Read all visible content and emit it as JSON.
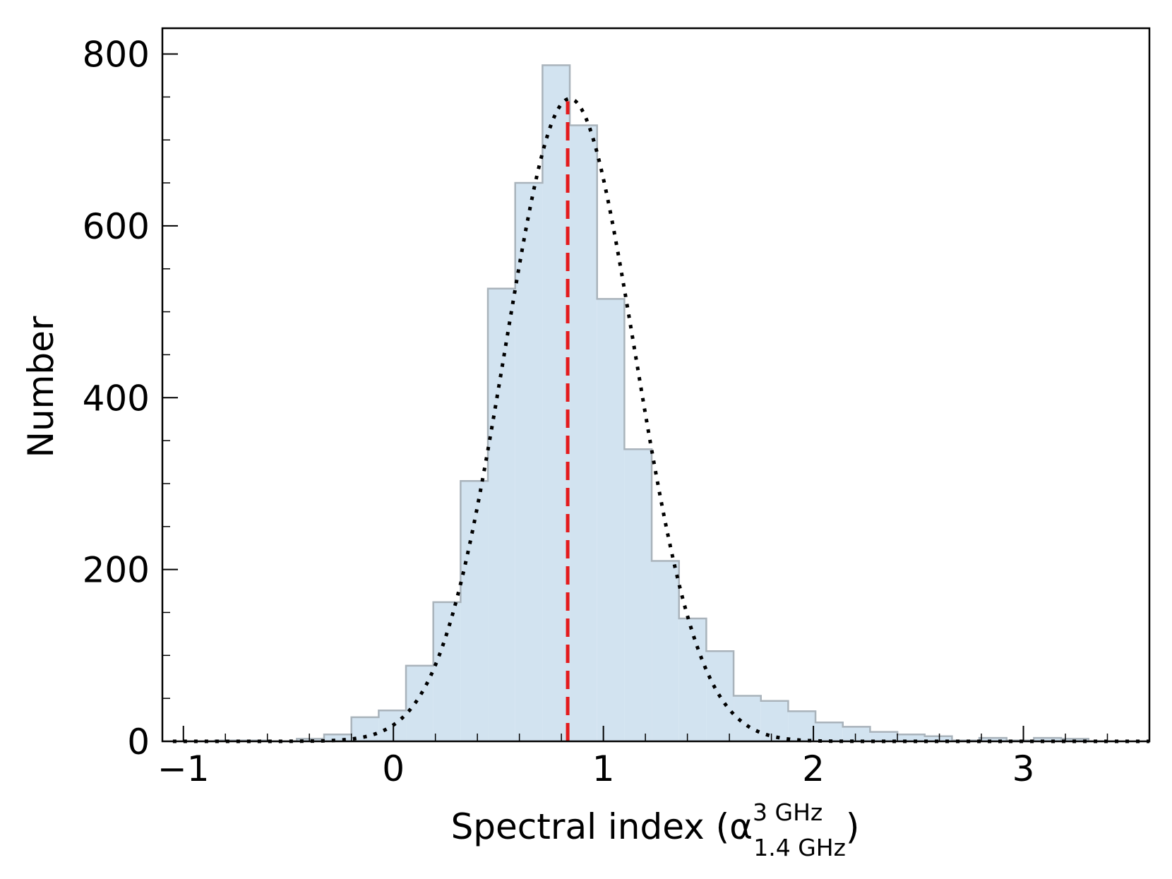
{
  "chart_data": {
    "type": "bar",
    "subtype": "histogram",
    "xlabel": "Spectral index (α",
    "xlabel_sup": "3 GHz",
    "xlabel_sub": "1.4 GHz",
    "xlabel_close": ")",
    "ylabel": "Number",
    "xlim": [
      -1.1,
      3.6
    ],
    "ylim": [
      0,
      830
    ],
    "xticks": [
      -1,
      0,
      1,
      2,
      3
    ],
    "xtick_labels": [
      "−1",
      "0",
      "1",
      "2",
      "3"
    ],
    "yticks": [
      0,
      200,
      400,
      600,
      800
    ],
    "ytick_labels": [
      "0",
      "200",
      "400",
      "600",
      "800"
    ],
    "bin_width": 0.13,
    "bin_left_edges": [
      -0.98,
      -0.85,
      -0.72,
      -0.59,
      -0.46,
      -0.33,
      -0.2,
      -0.07,
      0.06,
      0.19,
      0.32,
      0.45,
      0.58,
      0.71,
      0.84,
      0.97,
      1.1,
      1.23,
      1.36,
      1.49,
      1.62,
      1.75,
      1.88,
      2.01,
      2.14,
      2.27,
      2.4,
      2.53,
      2.66,
      2.79,
      2.92,
      3.05,
      3.18,
      3.31
    ],
    "values": [
      0,
      1,
      1,
      0,
      3,
      8,
      28,
      36,
      88,
      162,
      303,
      527,
      650,
      787,
      717,
      515,
      340,
      210,
      143,
      105,
      53,
      47,
      35,
      22,
      17,
      11,
      8,
      6,
      1,
      4,
      1,
      4,
      3,
      0
    ],
    "fit_curve": {
      "type": "gaussian",
      "style": "dotted",
      "color": "#000000",
      "peak_x": 0.84,
      "peak_y": 748,
      "sigma": 0.31
    },
    "median_line": {
      "x": 0.83,
      "y_top": 745,
      "style": "dashed",
      "color": "#e41a1c"
    },
    "bar_fill": "#d2e3f0",
    "bar_edge": "#a9b3bb",
    "grid": false
  }
}
